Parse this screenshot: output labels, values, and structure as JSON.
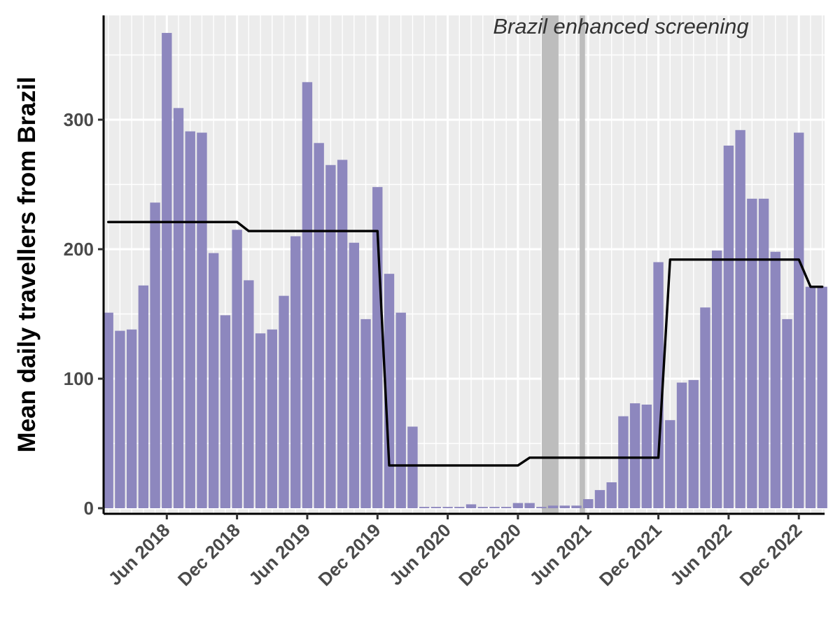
{
  "chart_data": {
    "type": "bar",
    "ylabel": "Mean daily travellers from Brazil",
    "xlabel": "",
    "ylim": [
      0,
      380
    ],
    "y_ticks": [
      0,
      100,
      200,
      300
    ],
    "x_tick_labels": [
      "Jun 2018",
      "Dec 2018",
      "Jun 2019",
      "Dec 2019",
      "Jun 2020",
      "Dec 2020",
      "Jun 2021",
      "Dec 2021",
      "Jun 2022",
      "Dec 2022"
    ],
    "categories": [
      "2018-01",
      "2018-02",
      "2018-03",
      "2018-04",
      "2018-05",
      "2018-06",
      "2018-07",
      "2018-08",
      "2018-09",
      "2018-10",
      "2018-11",
      "2018-12",
      "2019-01",
      "2019-02",
      "2019-03",
      "2019-04",
      "2019-05",
      "2019-06",
      "2019-07",
      "2019-08",
      "2019-09",
      "2019-10",
      "2019-11",
      "2019-12",
      "2020-01",
      "2020-02",
      "2020-03",
      "2020-04",
      "2020-05",
      "2020-06",
      "2020-07",
      "2020-08",
      "2020-09",
      "2020-10",
      "2020-11",
      "2020-12",
      "2021-01",
      "2021-02",
      "2021-03",
      "2021-04",
      "2021-05",
      "2021-06",
      "2021-07",
      "2021-08",
      "2021-09",
      "2021-10",
      "2021-11",
      "2021-12",
      "2022-01",
      "2022-02",
      "2022-03",
      "2022-04",
      "2022-05",
      "2022-06",
      "2022-07",
      "2022-08",
      "2022-09",
      "2022-10",
      "2022-11",
      "2022-12",
      "2023-01",
      "2023-02"
    ],
    "values": [
      151,
      137,
      138,
      172,
      236,
      367,
      309,
      291,
      290,
      197,
      149,
      215,
      176,
      135,
      138,
      164,
      210,
      329,
      282,
      265,
      269,
      205,
      146,
      248,
      181,
      151,
      63,
      1,
      1,
      1,
      1,
      3,
      1,
      1,
      1,
      4,
      4,
      1,
      2,
      2,
      2,
      7,
      14,
      20,
      71,
      81,
      80,
      190,
      68,
      97,
      99,
      155,
      199,
      280,
      292,
      239,
      239,
      198,
      146,
      290,
      171,
      171
    ],
    "series": [
      {
        "values": [
          221,
          221,
          221,
          221,
          221,
          221,
          221,
          221,
          221,
          221,
          221,
          221,
          214,
          214,
          214,
          214,
          214,
          214,
          214,
          214,
          214,
          214,
          214,
          214,
          33,
          33,
          33,
          33,
          33,
          33,
          33,
          33,
          33,
          33,
          33,
          33,
          39,
          39,
          39,
          39,
          39,
          39,
          39,
          39,
          39,
          39,
          39,
          39,
          192,
          192,
          192,
          192,
          192,
          192,
          192,
          192,
          192,
          192,
          192,
          192,
          171,
          171
        ]
      }
    ],
    "shaded_periods": [
      {
        "start": "2021-02-16",
        "end": "2021-03-31"
      },
      {
        "start": "2021-05-25",
        "end": "2021-06-08"
      }
    ],
    "annotation": "Brazil enhanced screening",
    "grid": true,
    "legend": "none"
  },
  "colors": {
    "bar": "#8d87be",
    "line": "#000000",
    "panel_bg": "#ececec",
    "grid": "#ffffff",
    "shade": "#bdbdbd"
  }
}
